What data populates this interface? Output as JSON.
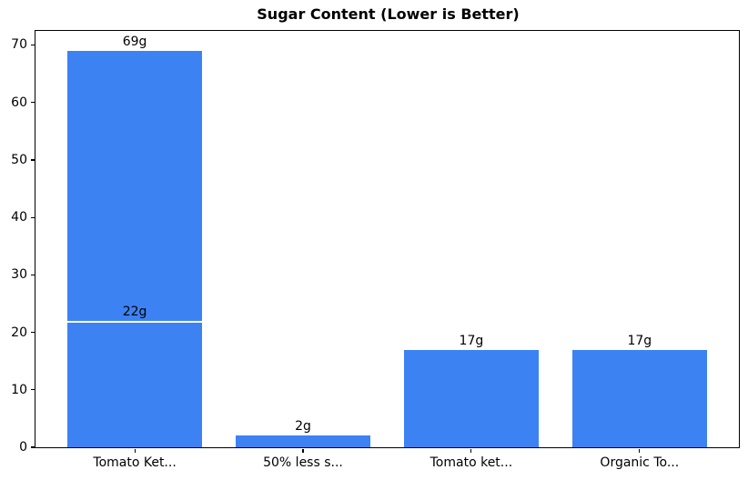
{
  "chart_data": {
    "type": "bar",
    "title": "Sugar Content (Lower is Better)",
    "xlabel": "",
    "ylabel": "",
    "categories": [
      "Tomato Ket...",
      "50% less s...",
      "Tomato ket...",
      "Organic To..."
    ],
    "bars": [
      {
        "category_index": 0,
        "value": 69,
        "label": "69g",
        "overlaid": false
      },
      {
        "category_index": 0,
        "value": 22,
        "label": "22g",
        "overlaid": true
      },
      {
        "category_index": 1,
        "value": 2,
        "label": "2g",
        "overlaid": false
      },
      {
        "category_index": 2,
        "value": 17,
        "label": "17g",
        "overlaid": false
      },
      {
        "category_index": 3,
        "value": 17,
        "label": "17g",
        "overlaid": false
      }
    ],
    "values": [
      69,
      2,
      17,
      17
    ],
    "yticks": [
      0,
      10,
      20,
      30,
      40,
      50,
      60,
      70
    ],
    "ylim": [
      0,
      72.45
    ],
    "grid": false,
    "legend": null,
    "bar_color": "#3c82f3",
    "overlay_edge_color": "#ffffff",
    "frame_color": "#000000",
    "background_color": "#ffffff",
    "text_color": "#000000"
  }
}
